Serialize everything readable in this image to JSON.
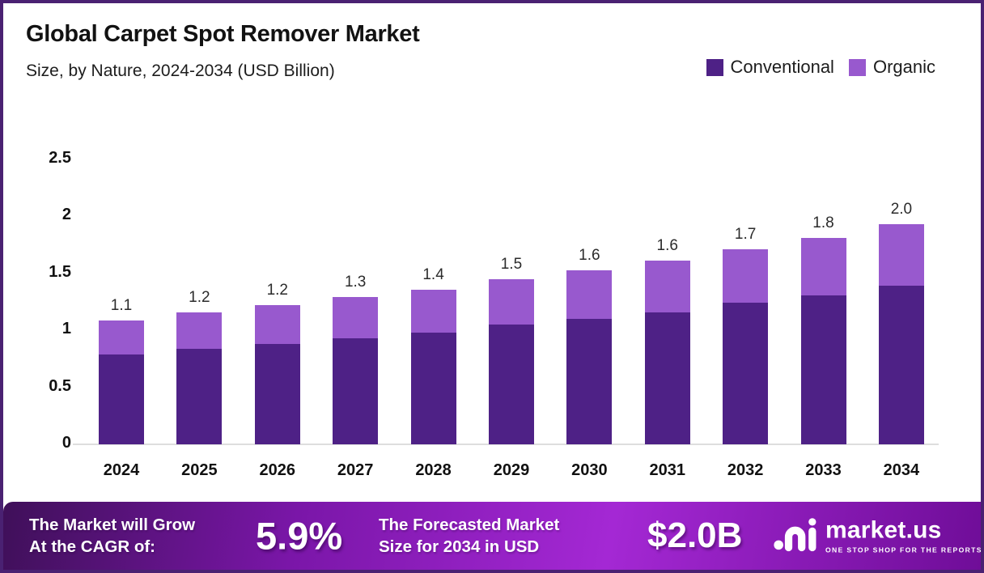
{
  "frame": {
    "border_color": "#4A2172",
    "background": "#FFFFFF"
  },
  "header": {
    "title": "Global Carpet Spot Remover Market",
    "subtitle": "Size, by Nature, 2024-2034 (USD Billion)"
  },
  "legend": [
    {
      "label": "Conventional",
      "color": "#4E2186"
    },
    {
      "label": "Organic",
      "color": "#9859CE"
    }
  ],
  "chart_data": {
    "type": "bar",
    "stacked": true,
    "title": "Global Carpet Spot Remover Market Size, by Nature, 2024-2034 (USD Billion)",
    "categories": [
      "2024",
      "2025",
      "2026",
      "2027",
      "2028",
      "2029",
      "2030",
      "2031",
      "2032",
      "2033",
      "2034"
    ],
    "series": [
      {
        "name": "Conventional",
        "color": "#4E2186",
        "values": [
          0.79,
          0.84,
          0.88,
          0.93,
          0.98,
          1.05,
          1.1,
          1.16,
          1.24,
          1.31,
          1.39
        ]
      },
      {
        "name": "Organic",
        "color": "#9859CE",
        "values": [
          0.3,
          0.32,
          0.34,
          0.36,
          0.38,
          0.4,
          0.43,
          0.45,
          0.47,
          0.5,
          0.54
        ]
      }
    ],
    "total_labels": [
      "1.1",
      "1.2",
      "1.2",
      "1.3",
      "1.4",
      "1.5",
      "1.6",
      "1.6",
      "1.7",
      "1.8",
      "2.0"
    ],
    "xlabel": "",
    "ylabel": "USD Billion",
    "ylim": [
      0,
      2.5
    ],
    "yticks": [
      "2.5",
      "2",
      "1.5",
      "1",
      "0.5",
      "0"
    ],
    "grid": false,
    "legend_position": "top-right"
  },
  "footer": {
    "cagr_caption_line1": "The Market will Grow",
    "cagr_caption_line2": "At the CAGR of:",
    "cagr_value": "5.9%",
    "forecast_caption_line1": "The Forecasted Market",
    "forecast_caption_line2": "Size for 2034 in USD",
    "forecast_value": "$2.0B",
    "brand": {
      "name": "market.us",
      "tagline": "ONE STOP SHOP FOR THE REPORTS"
    }
  }
}
